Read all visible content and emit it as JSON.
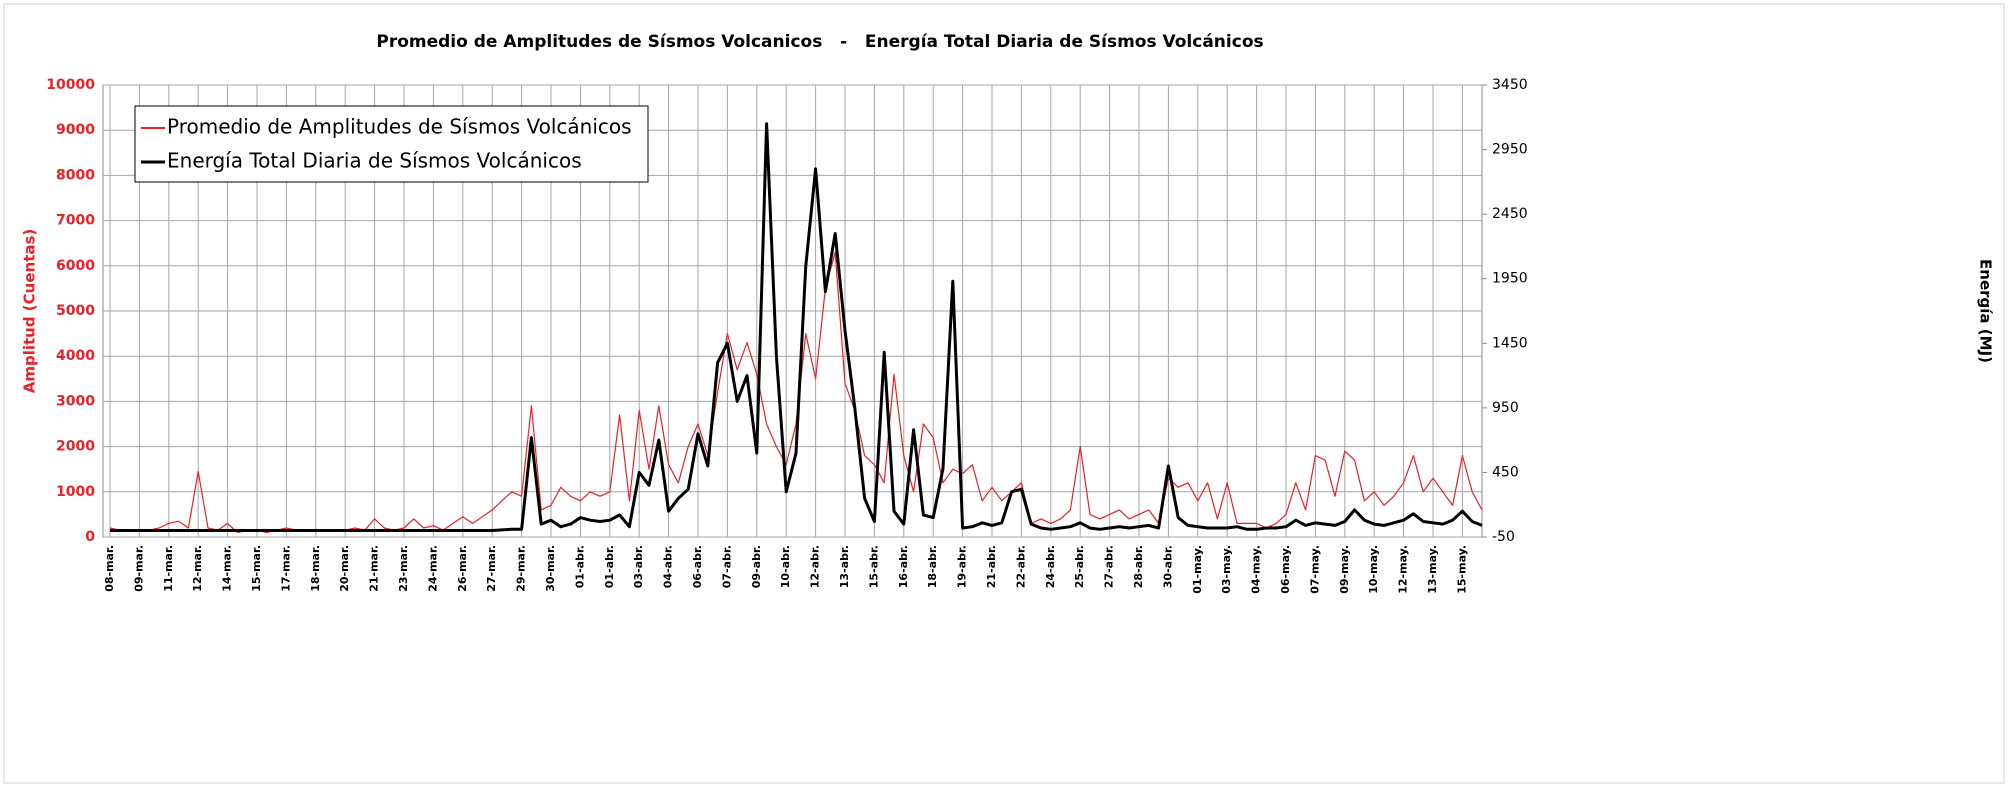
{
  "chart_data": {
    "type": "line",
    "title": "Promedio de Amplitudes de Sísmos Volcanicos   -   Energía Total Diaria de Sísmos Volcánicos",
    "ylabel": "Amplitud (Cuentas)",
    "y2label": "Energía (MJ)",
    "categories": [
      "08-mar.",
      null,
      null,
      "09-mar.",
      null,
      null,
      "11-mar.",
      null,
      null,
      "12-mar.",
      null,
      null,
      "14-mar.",
      null,
      null,
      "15-mar.",
      null,
      null,
      "17-mar.",
      null,
      null,
      "18-mar.",
      null,
      null,
      "20-mar.",
      null,
      null,
      "21-mar.",
      null,
      null,
      "23-mar.",
      null,
      null,
      "24-mar.",
      null,
      null,
      "26-mar.",
      null,
      null,
      "27-mar.",
      null,
      null,
      "29-mar.",
      null,
      null,
      "30-mar.",
      null,
      null,
      "01-abr.",
      null,
      null,
      "01-abr.",
      null,
      null,
      "03-abr.",
      null,
      null,
      "04-abr.",
      null,
      null,
      "06-abr.",
      null,
      null,
      "07-abr.",
      null,
      null,
      "09-abr.",
      null,
      null,
      "10-abr.",
      null,
      null,
      "12-abr.",
      null,
      null,
      "13-abr.",
      null,
      null,
      "15-abr.",
      null,
      null,
      "16-abr.",
      null,
      null,
      "18-abr.",
      null,
      null,
      "19-abr.",
      null,
      null,
      "21-abr.",
      null,
      null,
      "22-abr.",
      null,
      null,
      "24-abr.",
      null,
      null,
      "25-abr.",
      null,
      null,
      "27-abr.",
      null,
      null,
      "28-abr.",
      null,
      null,
      "30-abr.",
      null,
      null,
      "01-may.",
      null,
      null,
      "03-may.",
      null,
      null,
      "04-may.",
      null,
      null,
      "06-may.",
      null,
      null,
      "07-may.",
      null,
      null,
      "09-may.",
      null,
      null,
      "10-may.",
      null,
      null,
      "12-may.",
      null,
      null,
      "13-may.",
      null,
      null,
      "15-may.",
      null,
      null
    ],
    "series": [
      {
        "name": "Promedio de Amplitudes de Sísmos Volcánicos",
        "color": "#e8212b",
        "axis": "y",
        "values": [
          200,
          150,
          150,
          150,
          150,
          200,
          300,
          350,
          200,
          1450,
          200,
          150,
          300,
          100,
          150,
          150,
          100,
          150,
          200,
          150,
          150,
          150,
          150,
          150,
          150,
          200,
          150,
          400,
          200,
          150,
          200,
          400,
          200,
          250,
          150,
          300,
          450,
          300,
          450,
          600,
          800,
          1000,
          900,
          2900,
          600,
          700,
          1100,
          900,
          800,
          1000,
          900,
          1000,
          2700,
          800,
          2800,
          1500,
          2900,
          1600,
          1200,
          2000,
          2500,
          1800,
          3200,
          4500,
          3700,
          4300,
          3600,
          2500,
          2000,
          1600,
          2500,
          4500,
          3500,
          5500,
          6300,
          3400,
          2800,
          1800,
          1600,
          1200,
          3600,
          1800,
          1000,
          2500,
          2200,
          1200,
          1500,
          1400,
          1600,
          800,
          1100,
          800,
          1000,
          1200,
          300,
          400,
          300,
          400,
          600,
          2000,
          500,
          400,
          500,
          600,
          400,
          500,
          600,
          300,
          1300,
          1100,
          1200,
          800,
          1200,
          400,
          1200,
          300,
          300,
          300,
          200,
          300,
          500,
          1200,
          600,
          1800,
          1700,
          900,
          1900,
          1700,
          800,
          1000,
          700,
          900,
          1200,
          1800,
          1000,
          1300,
          1000,
          700,
          1800,
          1000,
          600
        ]
      },
      {
        "name": "Energía Total Diaria de Sísmos Volcánicos",
        "color": "#000000",
        "axis": "y2",
        "values": [
          0,
          0,
          0,
          0,
          0,
          0,
          0,
          0,
          0,
          0,
          0,
          0,
          0,
          0,
          0,
          0,
          0,
          0,
          0,
          0,
          0,
          0,
          0,
          0,
          0,
          0,
          0,
          0,
          0,
          0,
          0,
          0,
          0,
          0,
          0,
          0,
          0,
          0,
          0,
          0,
          5,
          10,
          10,
          720,
          50,
          80,
          30,
          50,
          100,
          80,
          70,
          80,
          120,
          30,
          450,
          350,
          700,
          150,
          250,
          320,
          750,
          500,
          1300,
          1450,
          1000,
          1200,
          600,
          3150,
          1350,
          300,
          600,
          2050,
          2800,
          1850,
          2300,
          1550,
          950,
          250,
          70,
          1380,
          150,
          50,
          780,
          120,
          100,
          480,
          1930,
          20,
          30,
          60,
          40,
          60,
          300,
          320,
          50,
          20,
          10,
          20,
          30,
          60,
          20,
          10,
          20,
          30,
          20,
          30,
          40,
          20,
          500,
          100,
          40,
          30,
          20,
          20,
          20,
          30,
          10,
          10,
          20,
          20,
          30,
          80,
          40,
          60,
          50,
          40,
          70,
          160,
          80,
          50,
          40,
          60,
          80,
          130,
          70,
          60,
          50,
          80,
          150,
          70,
          40
        ]
      }
    ],
    "ylim": [
      0,
      10000
    ],
    "yticks": [
      0,
      1000,
      2000,
      3000,
      4000,
      5000,
      6000,
      7000,
      8000,
      9000,
      10000
    ],
    "y2lim": [
      -50,
      3450
    ],
    "y2ticks": [
      -50,
      450,
      950,
      1450,
      1950,
      2450,
      2950,
      3450
    ],
    "grid": true,
    "legend": "upper left"
  }
}
